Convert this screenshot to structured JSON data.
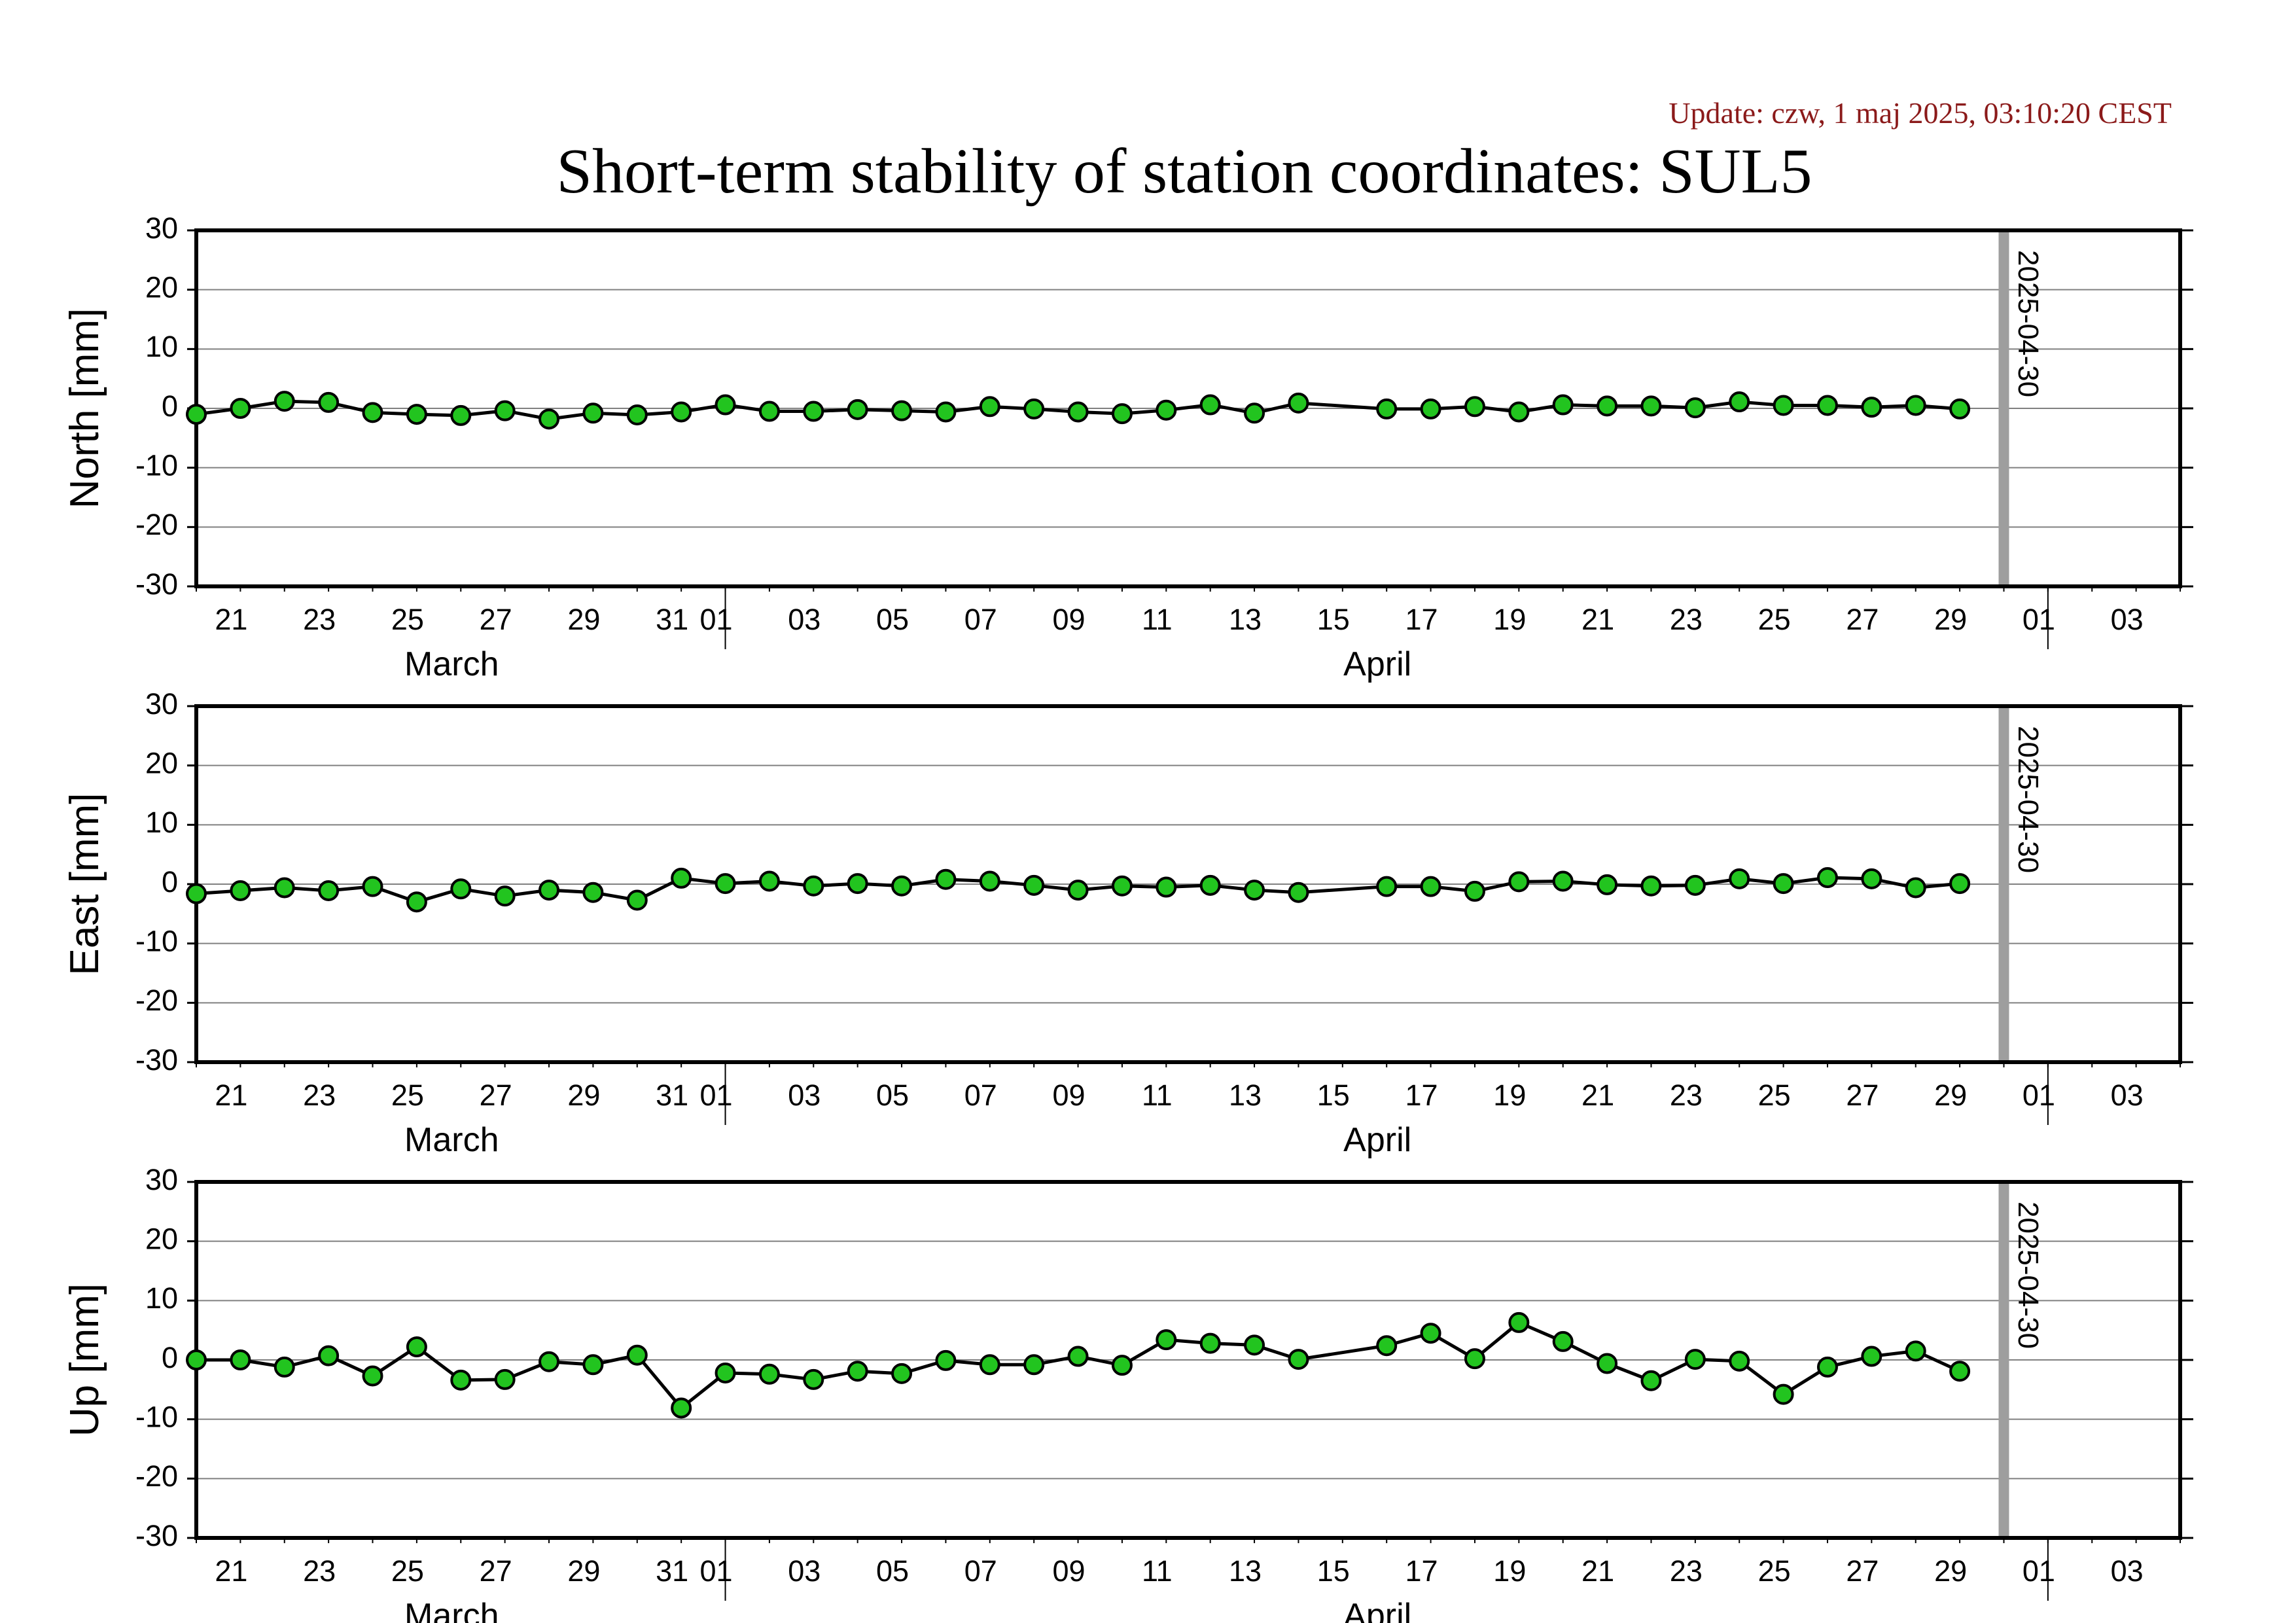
{
  "update_text": "Update: czw, 1 maj 2025, 03:10:20 CEST",
  "title": "Short-term stability of station coordinates: SUL5",
  "colors": {
    "marker_fill": "#22c41f",
    "marker_stroke": "#000000",
    "marker_line": "#000000",
    "epoch_line": "#9e9e9e",
    "grid": "#808080",
    "update_text": "#8b1a1a"
  },
  "chart_data": [
    {
      "type": "line",
      "ylabel": "North [mm]",
      "ylim": [
        -30,
        30
      ],
      "yticks": [
        -30,
        -20,
        -10,
        0,
        10,
        20,
        30
      ],
      "grid": true,
      "x_start": "2025-03-20",
      "x_end": "2025-05-04",
      "xtick_labels": [
        "21",
        "23",
        "25",
        "27",
        "29",
        "31",
        "01",
        "03",
        "05",
        "07",
        "09",
        "11",
        "13",
        "15",
        "17",
        "19",
        "21",
        "23",
        "25",
        "27",
        "29",
        "01",
        "03"
      ],
      "month_labels": [
        "March",
        "April"
      ],
      "epoch_line": "2025-04-30",
      "series": [
        {
          "x": [
            "2025-03-20",
            "2025-03-21",
            "2025-03-22",
            "2025-03-23",
            "2025-03-24",
            "2025-03-25",
            "2025-03-26",
            "2025-03-27",
            "2025-03-28",
            "2025-03-29",
            "2025-03-30",
            "2025-03-31",
            "2025-04-01",
            "2025-04-02",
            "2025-04-03",
            "2025-04-04",
            "2025-04-05",
            "2025-04-06",
            "2025-04-07",
            "2025-04-08",
            "2025-04-09",
            "2025-04-10",
            "2025-04-11",
            "2025-04-12",
            "2025-04-13",
            "2025-04-14",
            "2025-04-16",
            "2025-04-17",
            "2025-04-18",
            "2025-04-19",
            "2025-04-20",
            "2025-04-21",
            "2025-04-22",
            "2025-04-23",
            "2025-04-24",
            "2025-04-25",
            "2025-04-26",
            "2025-04-27",
            "2025-04-28",
            "2025-04-29"
          ],
          "y": [
            -1,
            0,
            1.2,
            1,
            -0.7,
            -1,
            -1.2,
            -0.4,
            -1.8,
            -0.8,
            -1.1,
            -0.6,
            0.6,
            -0.5,
            -0.5,
            -0.2,
            -0.4,
            -0.6,
            0.3,
            -0.1,
            -0.6,
            -0.9,
            -0.3,
            0.6,
            -0.8,
            0.9,
            -0.1,
            -0.1,
            0.3,
            -0.6,
            0.6,
            0.4,
            0.4,
            0.1,
            1.1,
            0.5,
            0.5,
            0.2,
            0.5,
            -0.1
          ]
        }
      ]
    },
    {
      "type": "line",
      "ylabel": "East [mm]",
      "ylim": [
        -30,
        30
      ],
      "yticks": [
        -30,
        -20,
        -10,
        0,
        10,
        20,
        30
      ],
      "grid": true,
      "x_start": "2025-03-20",
      "x_end": "2025-05-04",
      "xtick_labels": [
        "21",
        "23",
        "25",
        "27",
        "29",
        "31",
        "01",
        "03",
        "05",
        "07",
        "09",
        "11",
        "13",
        "15",
        "17",
        "19",
        "21",
        "23",
        "25",
        "27",
        "29",
        "01",
        "03"
      ],
      "month_labels": [
        "March",
        "April"
      ],
      "epoch_line": "2025-04-30",
      "series": [
        {
          "x": [
            "2025-03-20",
            "2025-03-21",
            "2025-03-22",
            "2025-03-23",
            "2025-03-24",
            "2025-03-25",
            "2025-03-26",
            "2025-03-27",
            "2025-03-28",
            "2025-03-29",
            "2025-03-30",
            "2025-03-31",
            "2025-04-01",
            "2025-04-02",
            "2025-04-03",
            "2025-04-04",
            "2025-04-05",
            "2025-04-06",
            "2025-04-07",
            "2025-04-08",
            "2025-04-09",
            "2025-04-10",
            "2025-04-11",
            "2025-04-12",
            "2025-04-13",
            "2025-04-14",
            "2025-04-16",
            "2025-04-17",
            "2025-04-18",
            "2025-04-19",
            "2025-04-20",
            "2025-04-21",
            "2025-04-22",
            "2025-04-23",
            "2025-04-24",
            "2025-04-25",
            "2025-04-26",
            "2025-04-27",
            "2025-04-28",
            "2025-04-29"
          ],
          "y": [
            -1.6,
            -1.1,
            -0.6,
            -1.1,
            -0.4,
            -3,
            -0.8,
            -2,
            -1,
            -1.4,
            -2.7,
            1,
            0.1,
            0.5,
            -0.3,
            0.1,
            -0.3,
            0.8,
            0.5,
            -0.2,
            -1,
            -0.3,
            -0.5,
            -0.2,
            -1,
            -1.4,
            -0.4,
            -0.4,
            -1.2,
            0.4,
            0.5,
            -0.1,
            -0.3,
            -0.2,
            0.9,
            0.1,
            1.1,
            0.9,
            -0.6,
            0.1
          ]
        }
      ]
    },
    {
      "type": "line",
      "ylabel": "Up [mm]",
      "ylim": [
        -30,
        30
      ],
      "yticks": [
        -30,
        -20,
        -10,
        0,
        10,
        20,
        30
      ],
      "grid": true,
      "x_start": "2025-03-20",
      "x_end": "2025-05-04",
      "xtick_labels": [
        "21",
        "23",
        "25",
        "27",
        "29",
        "31",
        "01",
        "03",
        "05",
        "07",
        "09",
        "11",
        "13",
        "15",
        "17",
        "19",
        "21",
        "23",
        "25",
        "27",
        "29",
        "01",
        "03"
      ],
      "month_labels": [
        "March",
        "April"
      ],
      "epoch_line": "2025-04-30",
      "series": [
        {
          "x": [
            "2025-03-20",
            "2025-03-21",
            "2025-03-22",
            "2025-03-23",
            "2025-03-24",
            "2025-03-25",
            "2025-03-26",
            "2025-03-27",
            "2025-03-28",
            "2025-03-29",
            "2025-03-30",
            "2025-03-31",
            "2025-04-01",
            "2025-04-02",
            "2025-04-03",
            "2025-04-04",
            "2025-04-05",
            "2025-04-06",
            "2025-04-07",
            "2025-04-08",
            "2025-04-09",
            "2025-04-10",
            "2025-04-11",
            "2025-04-12",
            "2025-04-13",
            "2025-04-14",
            "2025-04-16",
            "2025-04-17",
            "2025-04-18",
            "2025-04-19",
            "2025-04-20",
            "2025-04-21",
            "2025-04-22",
            "2025-04-23",
            "2025-04-24",
            "2025-04-25",
            "2025-04-26",
            "2025-04-27",
            "2025-04-28",
            "2025-04-29"
          ],
          "y": [
            0,
            0,
            -1.2,
            0.7,
            -2.7,
            2.2,
            -3.4,
            -3.3,
            -0.3,
            -0.8,
            0.8,
            -8.1,
            -2.2,
            -2.4,
            -3.3,
            -1.9,
            -2.3,
            -0.1,
            -0.8,
            -0.8,
            0.6,
            -0.9,
            3.4,
            2.8,
            2.5,
            0.1,
            2.4,
            4.5,
            0.2,
            6.3,
            3.1,
            -0.6,
            -3.5,
            0.1,
            -0.2,
            -5.8,
            -1.2,
            0.6,
            1.5,
            -1.9
          ]
        }
      ]
    }
  ]
}
